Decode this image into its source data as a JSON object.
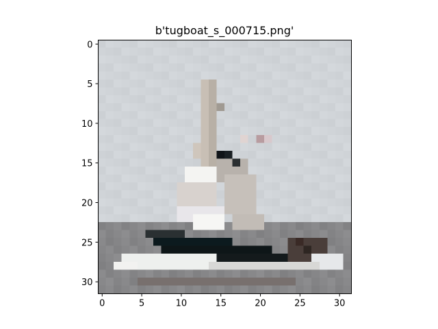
{
  "figure": {
    "title": "b'tugboat_s_000715.png'",
    "x_ticks": [
      "0",
      "5",
      "10",
      "15",
      "20",
      "25",
      "30"
    ],
    "y_ticks": [
      "0",
      "5",
      "10",
      "15",
      "20",
      "25",
      "30"
    ]
  },
  "image": {
    "grid_size": 32,
    "sky_color": "#d4d8dc",
    "water_color": "#8a8a8c",
    "hull_dark_color": "#0c1a1e",
    "hull_white_color": "#eef0ee"
  }
}
